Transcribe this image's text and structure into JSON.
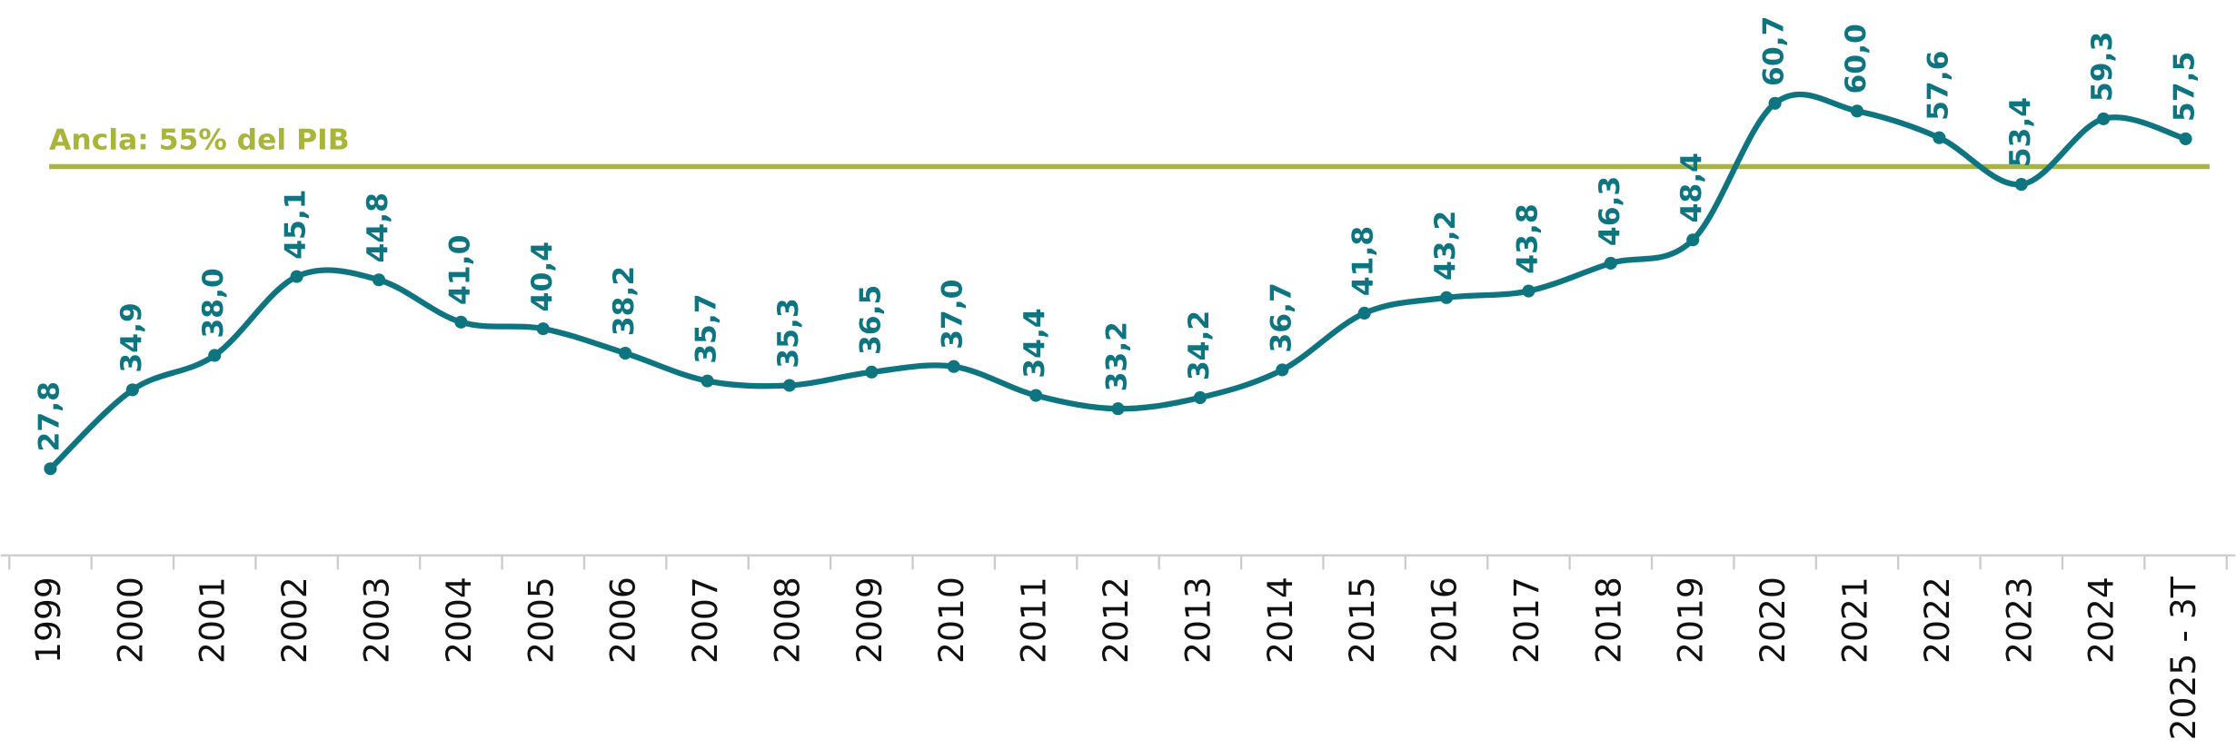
{
  "chart_data": {
    "type": "line",
    "categories": [
      "1999",
      "2000",
      "2001",
      "2002",
      "2003",
      "2004",
      "2005",
      "2006",
      "2007",
      "2008",
      "2009",
      "2010",
      "2011",
      "2012",
      "2013",
      "2014",
      "2015",
      "2016",
      "2017",
      "2018",
      "2019",
      "2020",
      "2021",
      "2022",
      "2023",
      "2024",
      "2025 - 3T"
    ],
    "values": [
      27.8,
      34.9,
      38.0,
      45.1,
      44.8,
      41.0,
      40.4,
      38.2,
      35.7,
      35.3,
      36.5,
      37.0,
      34.4,
      33.2,
      34.2,
      36.7,
      41.8,
      43.2,
      43.8,
      46.3,
      48.4,
      60.7,
      60.0,
      57.6,
      53.4,
      59.3,
      57.5
    ],
    "value_labels": [
      "27,8",
      "34,9",
      "38,0",
      "45,1",
      "44,8",
      "41,0",
      "40,4",
      "38,2",
      "35,7",
      "35,3",
      "36,5",
      "37,0",
      "34,4",
      "33,2",
      "34,2",
      "36,7",
      "41,8",
      "43,2",
      "43,8",
      "46,3",
      "48,4",
      "60,7",
      "60,0",
      "57,6",
      "53,4",
      "59,3",
      "57,5"
    ],
    "color": "#0e7480",
    "ylim": [
      20,
      70
    ],
    "reference_line": {
      "value": 55,
      "label": "Ancla: 55% del PIB",
      "color": "#a8b53a"
    }
  }
}
